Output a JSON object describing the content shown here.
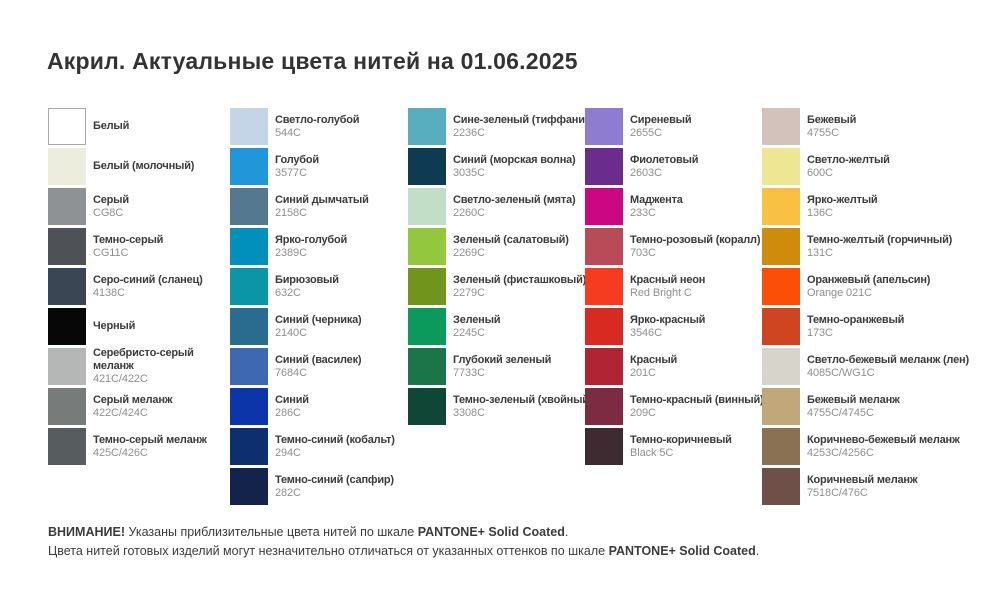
{
  "title": "Акрил. Актуальные цвета нитей на 01.06.2025",
  "columns": [
    {
      "items": [
        {
          "name": "Белый",
          "code": "",
          "hex": "#ffffff",
          "border": true
        },
        {
          "name": "Белый (молочный)",
          "code": "",
          "hex": "#eceddd"
        },
        {
          "name": "Серый",
          "code": "CG8C",
          "hex": "#8f9295"
        },
        {
          "name": "Темно-серый",
          "code": "CG11C",
          "hex": "#4e5256"
        },
        {
          "name": "Серо-синий (сланец)",
          "code": "4138C",
          "hex": "#3a4654"
        },
        {
          "name": "Черный",
          "code": "",
          "hex": "#070707"
        },
        {
          "name": "Серебристо-серый меланж",
          "code": "421C/422C",
          "hex": "#b5b7b6"
        },
        {
          "name": "Серый меланж",
          "code": "422C/424C",
          "hex": "#777b7a"
        },
        {
          "name": "Темно-серый меланж",
          "code": "425C/426C",
          "hex": "#575c5f"
        }
      ]
    },
    {
      "items": [
        {
          "name": "Светло-голубой",
          "code": "544C",
          "hex": "#c3d5e6"
        },
        {
          "name": "Голубой",
          "code": "3577C",
          "hex": "#2196d8"
        },
        {
          "name": "Синий дымчатый",
          "code": "2158C",
          "hex": "#53788f"
        },
        {
          "name": "Ярко-голубой",
          "code": "2389C",
          "hex": "#0090bb"
        },
        {
          "name": "Бирюзовый",
          "code": "632C",
          "hex": "#0c96a5"
        },
        {
          "name": "Синий (черника)",
          "code": "2140C",
          "hex": "#2a6c8f"
        },
        {
          "name": "Синий (василек)",
          "code": "7684C",
          "hex": "#3e68b1"
        },
        {
          "name": "Синий",
          "code": "286C",
          "hex": "#0b35a8"
        },
        {
          "name": "Темно-синий (кобальт)",
          "code": "294C",
          "hex": "#0d2f6e"
        },
        {
          "name": "Темно-синий (сапфир)",
          "code": "282C",
          "hex": "#13234b"
        }
      ]
    },
    {
      "items": [
        {
          "name": "Сине-зеленый (тиффани)",
          "code": "2236C",
          "hex": "#58aebc"
        },
        {
          "name": "Синий (морская волна)",
          "code": "3035C",
          "hex": "#0e3a52"
        },
        {
          "name": "Светло-зеленый (мята)",
          "code": "2260C",
          "hex": "#c2dec6"
        },
        {
          "name": "Зеленый (салатовый)",
          "code": "2269C",
          "hex": "#93c83e"
        },
        {
          "name": "Зеленый (фисташковый)",
          "code": "2279C",
          "hex": "#71951c"
        },
        {
          "name": "Зеленый",
          "code": "2245C",
          "hex": "#0c9a5c"
        },
        {
          "name": "Глубокий зеленый",
          "code": "7733C",
          "hex": "#1c7548"
        },
        {
          "name": "Темно-зеленый (хвойный)",
          "code": "3308C",
          "hex": "#104636"
        }
      ]
    },
    {
      "items": [
        {
          "name": "Сиреневый",
          "code": "2655C",
          "hex": "#8e7cd0"
        },
        {
          "name": "Фиолетовый",
          "code": "2603C",
          "hex": "#6b2d8c"
        },
        {
          "name": "Маджента",
          "code": "233C",
          "hex": "#cc0782"
        },
        {
          "name": "Темно-розовый (коралл)",
          "code": "703C",
          "hex": "#b94a57"
        },
        {
          "name": "Красный неон",
          "code": "Red Bright C",
          "hex": "#f63b20"
        },
        {
          "name": "Ярко-красный",
          "code": "3546C",
          "hex": "#d92a22"
        },
        {
          "name": "Красный",
          "code": "201C",
          "hex": "#b02433"
        },
        {
          "name": "Темно-красный (винный)",
          "code": "209C",
          "hex": "#7c2b43"
        },
        {
          "name": "Темно-коричневый",
          "code": "Black 5C",
          "hex": "#3e2a31"
        }
      ]
    },
    {
      "items": [
        {
          "name": "Бежевый",
          "code": "4755C",
          "hex": "#d3c1bc"
        },
        {
          "name": "Светло-желтый",
          "code": "600C",
          "hex": "#ede692"
        },
        {
          "name": "Ярко-желтый",
          "code": "136C",
          "hex": "#f9c143"
        },
        {
          "name": "Темно-желтый (горчичный)",
          "code": "131C",
          "hex": "#cf8c0c"
        },
        {
          "name": "Оранжевый (апельсин)",
          "code": "Orange 021C",
          "hex": "#fb4f08"
        },
        {
          "name": "Темно-оранжевый",
          "code": "173C",
          "hex": "#cf4522"
        },
        {
          "name": "Светло-бежевый меланж (лен)",
          "code": "4085C/WG1C",
          "hex": "#d7d4cc"
        },
        {
          "name": "Бежевый меланж",
          "code": "4755C/4745C",
          "hex": "#c0a87b"
        },
        {
          "name": "Коричнево-бежевый меланж",
          "code": "4253C/4256C",
          "hex": "#8a7154"
        },
        {
          "name": "Коричневый меланж",
          "code": "7518C/476C",
          "hex": "#6e5048"
        }
      ]
    }
  ],
  "footer": {
    "lines": [
      {
        "segments": [
          {
            "text": "ВНИМАНИЕ!",
            "bold": true
          },
          {
            "text": " Указаны приблизительные цвета нитей по шкале ",
            "bold": false
          },
          {
            "text": "PANTONE+ Solid Coated",
            "bold": true
          },
          {
            "text": ".",
            "bold": false
          }
        ]
      },
      {
        "segments": [
          {
            "text": "Цвета нитей готовых изделий могут незначительно отличаться от указанных оттенков по шкале ",
            "bold": false
          },
          {
            "text": "PANTONE+ Solid Coated",
            "bold": true
          },
          {
            "text": ".",
            "bold": false
          }
        ]
      }
    ]
  },
  "colors": {
    "text_dark": "#3b3b3b",
    "code_gray": "#8f8f8f",
    "white_swatch_border": "#a9a9a9"
  }
}
